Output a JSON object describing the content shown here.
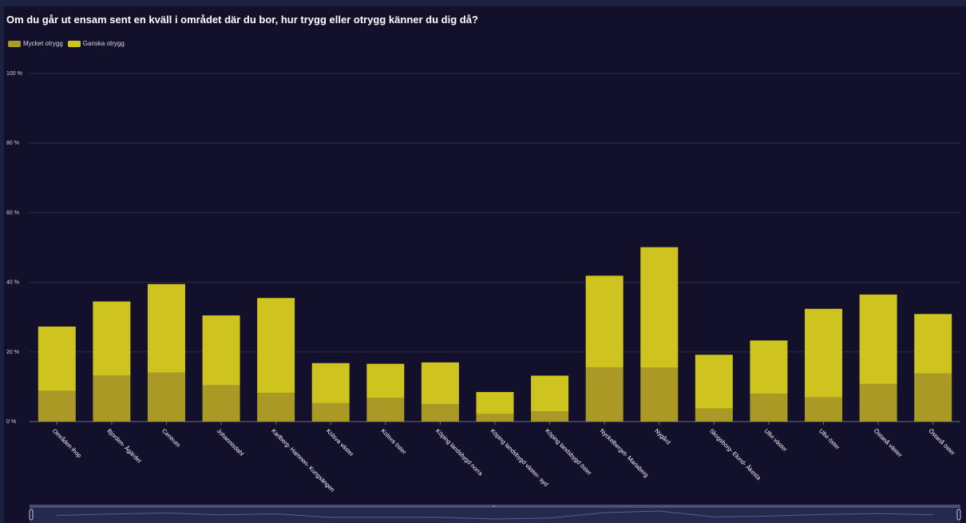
{
  "chart_data": {
    "type": "bar",
    "stacked": true,
    "title": "Om du går ut ensam sent en kväll i området där du bor, hur trygg eller otrygg känner du dig då?",
    "categories": [
      "Områden ihop",
      "Bjorden- Ågärdet",
      "Centrum",
      "Johannisdahl",
      "Karlberg- Hamnen- Kungsängen",
      "Kolsva väster",
      "Kolsva öster",
      "Köping landsbygd norra",
      "Köping landsbygd väster- syd",
      "Köping landsbygd öster",
      "Nyckelberget- Mariaberg",
      "Nygård",
      "Skogsborg- Elund- Åkesta",
      "Ullvi väster",
      "Ullvi öster",
      "Östanå väster",
      "Östanå öster"
    ],
    "series": [
      {
        "name": "Mycket otrygg",
        "color": "#aa9a25",
        "values": [
          8.8,
          13.3,
          14.1,
          10.4,
          8.2,
          5.3,
          6.8,
          5.0,
          2.2,
          2.9,
          15.6,
          15.5,
          3.8,
          8.0,
          7.0,
          10.8,
          13.8
        ]
      },
      {
        "name": "Ganska otrygg",
        "color": "#cfc31f",
        "values": [
          18.5,
          21.2,
          25.4,
          20.1,
          27.3,
          11.5,
          9.8,
          12.0,
          6.3,
          10.3,
          26.3,
          34.6,
          15.4,
          15.3,
          25.4,
          25.7,
          17.1
        ]
      }
    ],
    "ylim": [
      0,
      100
    ],
    "yticks": [
      "0 %",
      "20 %",
      "40 %",
      "60 %",
      "80 %",
      "100 %"
    ],
    "grid": true,
    "legend_position": "top-left"
  },
  "zoom_handle": "⁼"
}
